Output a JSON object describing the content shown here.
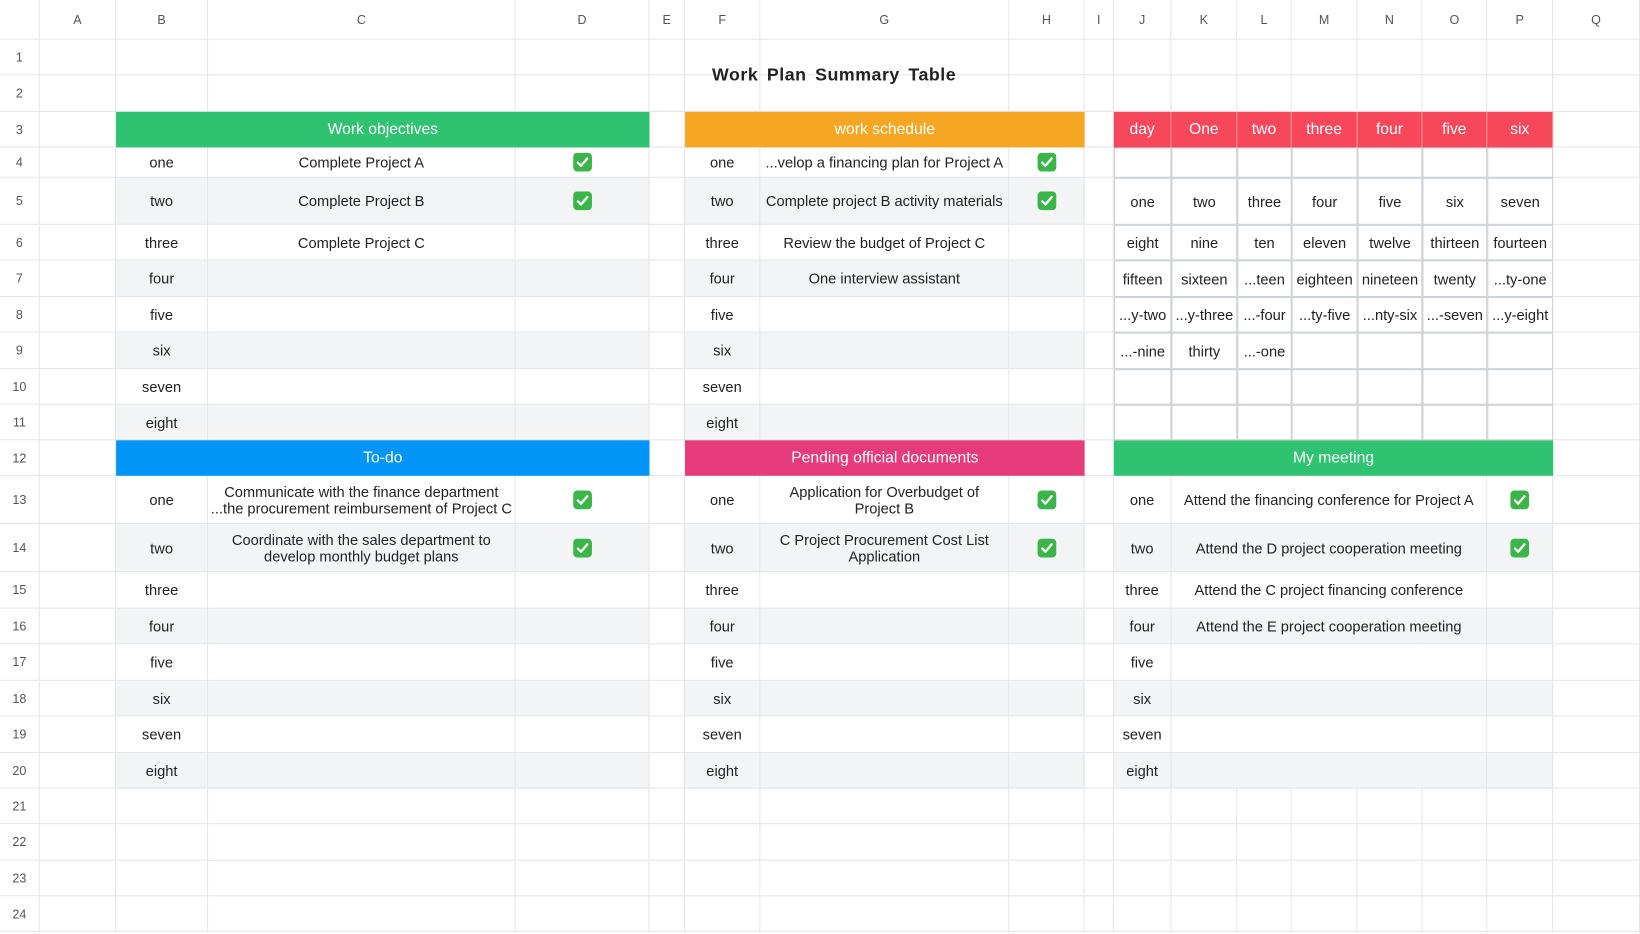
{
  "columns": [
    "A",
    "B",
    "C",
    "D",
    "E",
    "F",
    "G",
    "H",
    "I",
    "J",
    "K",
    "L",
    "M",
    "N",
    "O",
    "P",
    "Q"
  ],
  "rows": [
    "1",
    "2",
    "3",
    "4",
    "5",
    "6",
    "7",
    "8",
    "9",
    "10",
    "11",
    "12",
    "13",
    "14",
    "15",
    "16",
    "17",
    "18",
    "19",
    "20",
    "21",
    "22",
    "23",
    "24"
  ],
  "title": "Work Plan Summary Table",
  "sections": [
    {
      "title": "Work objectives",
      "color": "#2ec271",
      "items": [
        {
          "label": "one",
          "text": "Complete Project A",
          "done": true
        },
        {
          "label": "two",
          "text": "Complete Project B",
          "done": true
        },
        {
          "label": "three",
          "text": "Complete Project C"
        },
        {
          "label": "four"
        },
        {
          "label": "five"
        },
        {
          "label": "six"
        },
        {
          "label": "seven"
        },
        {
          "label": "eight"
        }
      ]
    },
    {
      "title": "work schedule",
      "color": "#f5a623",
      "items": [
        {
          "label": "one",
          "text": "...velop a financing plan for Project A",
          "done": true
        },
        {
          "label": "two",
          "text": "Complete project B activity materials",
          "done": true
        },
        {
          "label": "three",
          "text": "Review the budget of Project C"
        },
        {
          "label": "four",
          "text": "One interview assistant"
        },
        {
          "label": "five"
        },
        {
          "label": "six"
        },
        {
          "label": "seven"
        },
        {
          "label": "eight"
        }
      ]
    },
    {
      "title": "To-do",
      "color": "#0095f6",
      "items": [
        {
          "label": "one",
          "text": "Communicate with the finance department\n...the procurement reimbursement of Project C",
          "done": true
        },
        {
          "label": "two",
          "text": "Coordinate with the sales department to\ndevelop monthly budget plans",
          "done": true
        },
        {
          "label": "three"
        },
        {
          "label": "four"
        },
        {
          "label": "five"
        },
        {
          "label": "six"
        },
        {
          "label": "seven"
        },
        {
          "label": "eight"
        }
      ]
    },
    {
      "title": "Pending official documents",
      "color": "#e63b7a",
      "items": [
        {
          "label": "one",
          "text": "Application for Overbudget of\nProject B",
          "done": true
        },
        {
          "label": "two",
          "text": "C Project Procurement Cost List\nApplication",
          "done": true
        },
        {
          "label": "three"
        },
        {
          "label": "four"
        },
        {
          "label": "five"
        },
        {
          "label": "six"
        },
        {
          "label": "seven"
        },
        {
          "label": "eight"
        }
      ]
    },
    {
      "title": "My meeting",
      "color": "#2ec271",
      "items": [
        {
          "label": "one",
          "text": "Attend the financing conference for Project A",
          "done": true
        },
        {
          "label": "two",
          "text": "Attend the D project cooperation meeting",
          "done": true
        },
        {
          "label": "three",
          "text": "Attend the C project financing conference"
        },
        {
          "label": "four",
          "text": "Attend the E project cooperation meeting"
        },
        {
          "label": "five"
        },
        {
          "label": "six"
        },
        {
          "label": "seven"
        },
        {
          "label": "eight"
        }
      ]
    }
  ],
  "calendar": {
    "color": "#f7475b",
    "header": [
      "day",
      "One",
      "two",
      "three",
      "four",
      "five",
      "six"
    ],
    "weeks": [
      [
        "one",
        "two",
        "three",
        "four",
        "five",
        "six",
        "seven"
      ],
      [
        "eight",
        "nine",
        "ten",
        "eleven",
        "twelve",
        "thirteen",
        "fourteen"
      ],
      [
        "fifteen",
        "sixteen",
        "...teen",
        "eighteen",
        "nineteen",
        "twenty",
        "...ty-one"
      ],
      [
        "...y-two",
        "...y-three",
        "...-four",
        "...ty-five",
        "...nty-six",
        "...-seven",
        "...y-eight"
      ],
      [
        "...-nine",
        "thirty",
        "...-one"
      ]
    ]
  }
}
